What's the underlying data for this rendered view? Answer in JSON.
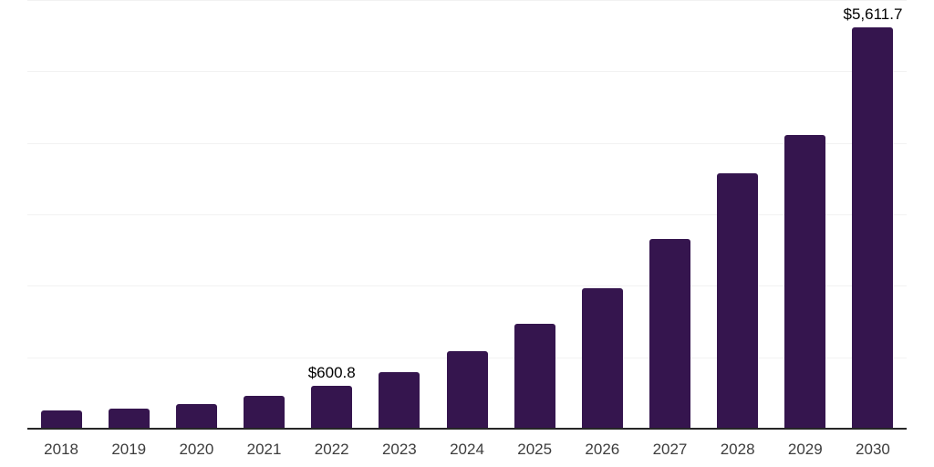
{
  "chart": {
    "background_color": "#ffffff",
    "bar_color": "#35154E",
    "axis_color": "#262626",
    "grid_color": "#f2f2f2",
    "tick_label_color": "#3d3d3d",
    "data_label_color": "#000000"
  },
  "chart_data": {
    "type": "bar",
    "title": "",
    "xlabel": "",
    "ylabel": "",
    "categories": [
      "2018",
      "2019",
      "2020",
      "2021",
      "2022",
      "2023",
      "2024",
      "2025",
      "2026",
      "2027",
      "2028",
      "2029",
      "2030"
    ],
    "values": [
      255,
      275,
      345,
      455,
      600.8,
      795,
      1090,
      1470,
      1965,
      2660,
      3575,
      4115,
      5611.7
    ],
    "bar_labels": [
      "",
      "",
      "",
      "",
      "$600.8",
      "",
      "",
      "",
      "",
      "",
      "",
      "",
      "$5,611.7"
    ],
    "ylim": [
      0,
      6000
    ],
    "grid_step": 1000,
    "grid": true,
    "legend": false,
    "y_tick_labels_visible": false
  }
}
